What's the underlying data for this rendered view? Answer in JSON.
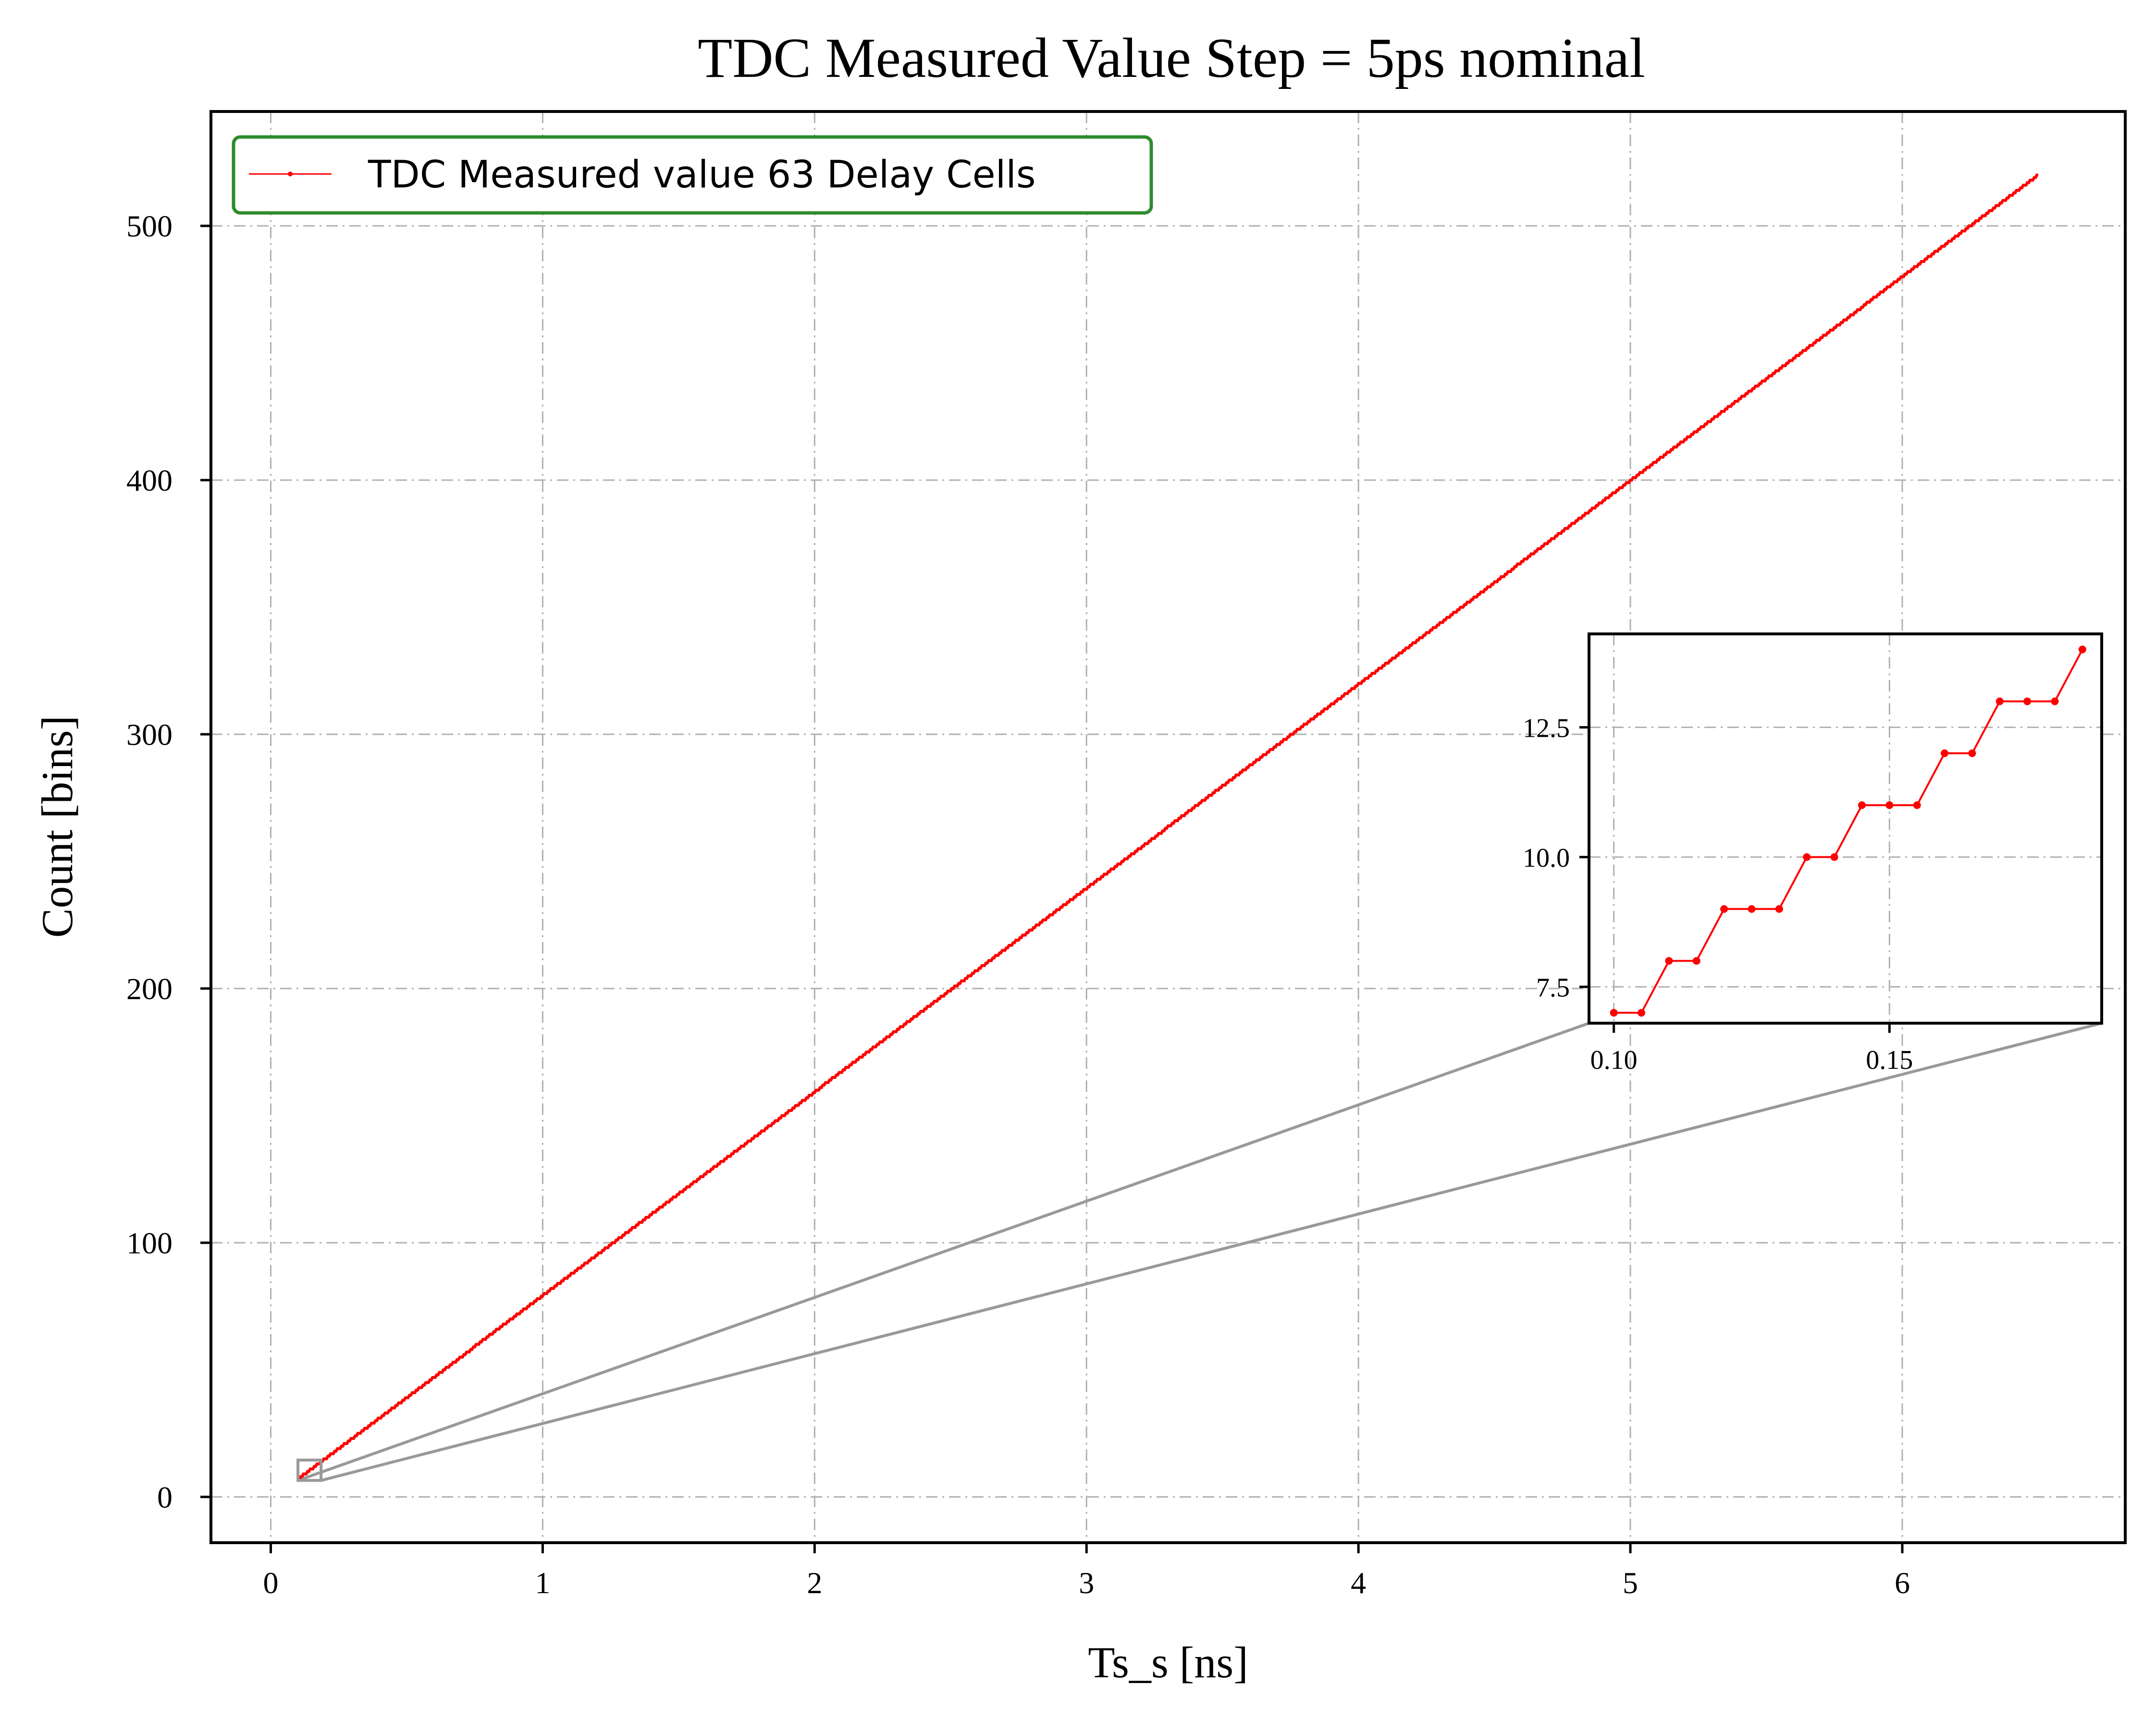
{
  "chart_data": [
    {
      "type": "line",
      "title": "TDC Measured Value Step = 5ps nominal",
      "xlabel": "Ts_s [ns]",
      "ylabel": "Count [bins]",
      "xlim": [
        -0.22,
        6.82
      ],
      "ylim": [
        -18,
        545
      ],
      "x_ticks": [
        "0",
        "1",
        "2",
        "3",
        "4",
        "5",
        "6"
      ],
      "y_ticks": [
        "0",
        "100",
        "200",
        "300",
        "400",
        "500"
      ],
      "grid": true,
      "legend_position": "top-left",
      "series": [
        {
          "name": "TDC Measured value 63 Delay Cells",
          "color": "#ff0000",
          "x_start": 0.1,
          "x_end": 6.5,
          "x_step": 0.005,
          "y_start": 7,
          "y_end": 520,
          "description_of_shape": "staircase, slope 80 bins/ns"
        }
      ],
      "zoom_region": {
        "x": [
          0.1,
          0.185
        ],
        "y": [
          6.5,
          14.5
        ]
      }
    },
    {
      "type": "line",
      "title": "",
      "xlim": [
        0.0955,
        0.1885
      ],
      "ylim": [
        6.8,
        14.3
      ],
      "x_ticks": [
        "0.10",
        "0.15"
      ],
      "y_ticks": [
        "7.5",
        "10.0",
        "12.5"
      ],
      "grid": true,
      "series": [
        {
          "color": "#ff0000",
          "x": [
            0.1,
            0.105,
            0.11,
            0.115,
            0.12,
            0.125,
            0.13,
            0.135,
            0.14,
            0.145,
            0.15,
            0.155,
            0.16,
            0.165,
            0.17,
            0.175,
            0.18,
            0.185
          ],
          "y": [
            7,
            7,
            8,
            8,
            9,
            9,
            9,
            10,
            10,
            11,
            11,
            11,
            12,
            12,
            13,
            13,
            13,
            14
          ]
        }
      ]
    }
  ],
  "colors": {
    "line": "#ff0000",
    "legend_border": "#2e8b2e",
    "grid": "#b0b0b0",
    "connector": "#999999"
  }
}
